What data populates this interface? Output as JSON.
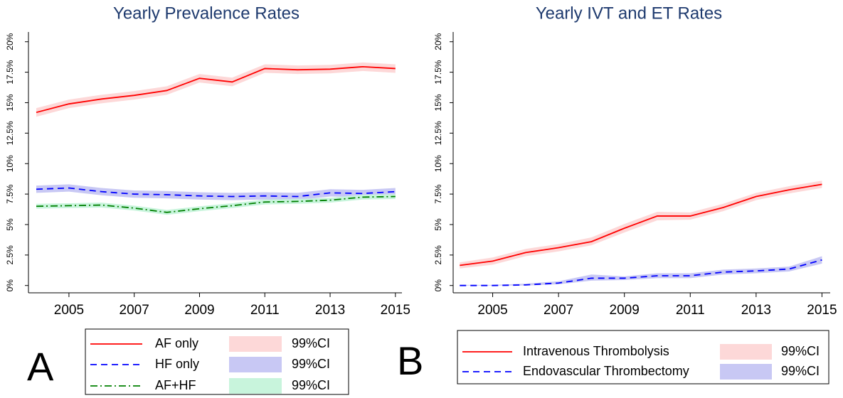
{
  "chart_data": [
    {
      "type": "line",
      "panel_label": "A",
      "title": "Yearly Prevalence Rates",
      "x": [
        2004,
        2005,
        2006,
        2007,
        2008,
        2009,
        2010,
        2011,
        2012,
        2013,
        2014,
        2015
      ],
      "xlim": [
        2003.76,
        2015.2
      ],
      "xticks": [
        2005,
        2007,
        2009,
        2011,
        2013,
        2015
      ],
      "ylim": [
        -0.6,
        20.8
      ],
      "yticks": [
        {
          "value": 0,
          "label": "0%"
        },
        {
          "value": 2.5,
          "label": "2.5%"
        },
        {
          "value": 5,
          "label": "5%"
        },
        {
          "value": 7.5,
          "label": "7.5%"
        },
        {
          "value": 10,
          "label": "10%"
        },
        {
          "value": 12.5,
          "label": "12.5%"
        },
        {
          "value": 15,
          "label": "15%"
        },
        {
          "value": 17.5,
          "label": "17.5%"
        },
        {
          "value": 20,
          "label": "20%"
        }
      ],
      "grid": false,
      "legend": "bottom",
      "series": [
        {
          "name": "AF only",
          "color": "#ff0000",
          "style": "solid",
          "values": [
            14.2,
            14.9,
            15.3,
            15.6,
            16.0,
            17.0,
            16.7,
            17.8,
            17.7,
            17.75,
            17.95,
            17.8
          ],
          "ci": {
            "name": "99%CI",
            "color": "#fdd8d8",
            "lower": [
              13.85,
              14.55,
              14.95,
              15.25,
              15.65,
              16.65,
              16.35,
              17.45,
              17.35,
              17.4,
              17.6,
              17.45
            ],
            "upper": [
              14.55,
              15.25,
              15.65,
              15.95,
              16.35,
              17.35,
              17.05,
              18.15,
              18.05,
              18.1,
              18.3,
              18.15
            ]
          }
        },
        {
          "name": "HF only",
          "color": "#0000ff",
          "style": "dash",
          "values": [
            7.9,
            8.0,
            7.7,
            7.5,
            7.45,
            7.35,
            7.3,
            7.35,
            7.3,
            7.6,
            7.55,
            7.7
          ],
          "ci": {
            "name": "99%CI",
            "color": "#c8c8f4",
            "lower": [
              7.6,
              7.7,
              7.4,
              7.2,
              7.15,
              7.05,
              7.0,
              7.05,
              7.0,
              7.3,
              7.25,
              7.4
            ],
            "upper": [
              8.2,
              8.3,
              8.0,
              7.8,
              7.75,
              7.65,
              7.6,
              7.65,
              7.6,
              7.9,
              7.85,
              8.0
            ]
          }
        },
        {
          "name": "AF+HF",
          "color": "#008000",
          "style": "dashdot",
          "values": [
            6.5,
            6.55,
            6.6,
            6.35,
            6.0,
            6.3,
            6.55,
            6.85,
            6.9,
            7.0,
            7.25,
            7.3
          ],
          "ci": {
            "name": "99%CI",
            "color": "#c8f4dc",
            "lower": [
              6.3,
              6.35,
              6.4,
              6.15,
              5.8,
              6.1,
              6.35,
              6.65,
              6.7,
              6.8,
              7.05,
              7.1
            ],
            "upper": [
              6.7,
              6.75,
              6.8,
              6.55,
              6.2,
              6.5,
              6.75,
              7.05,
              7.1,
              7.2,
              7.45,
              7.5
            ]
          }
        }
      ]
    },
    {
      "type": "line",
      "panel_label": "B",
      "title": "Yearly IVT and ET Rates",
      "x": [
        2004,
        2005,
        2006,
        2007,
        2008,
        2009,
        2010,
        2011,
        2012,
        2013,
        2014,
        2015
      ],
      "xlim": [
        2003.8,
        2015.25
      ],
      "xticks": [
        2005,
        2007,
        2009,
        2011,
        2013,
        2015
      ],
      "ylim": [
        -0.6,
        20.8
      ],
      "yticks": [
        {
          "value": 0,
          "label": "0%"
        },
        {
          "value": 2.5,
          "label": "2.5%"
        },
        {
          "value": 5,
          "label": "5%"
        },
        {
          "value": 7.5,
          "label": "7.5%"
        },
        {
          "value": 10,
          "label": "10%"
        },
        {
          "value": 12.5,
          "label": "12.5%"
        },
        {
          "value": 15,
          "label": "15%"
        },
        {
          "value": 17.5,
          "label": "17.5%"
        },
        {
          "value": 20,
          "label": "20%"
        }
      ],
      "grid": false,
      "legend": "bottom",
      "series": [
        {
          "name": "Intravenous Thrombolysis",
          "color": "#ff0000",
          "style": "solid",
          "values": [
            1.65,
            2.0,
            2.7,
            3.1,
            3.6,
            4.7,
            5.7,
            5.7,
            6.4,
            7.3,
            7.85,
            8.3
          ],
          "ci": {
            "name": "99%CI",
            "color": "#fdd8d8",
            "lower": [
              1.4,
              1.7,
              2.4,
              2.8,
              3.3,
              4.35,
              5.35,
              5.4,
              6.1,
              7.0,
              7.55,
              8.0
            ],
            "upper": [
              1.9,
              2.3,
              3.0,
              3.4,
              3.95,
              5.05,
              6.05,
              6.0,
              6.7,
              7.6,
              8.15,
              8.6
            ]
          }
        },
        {
          "name": "Endovascular Thrombectomy",
          "color": "#0000ff",
          "style": "dash",
          "values": [
            0,
            0,
            0.05,
            0.2,
            0.6,
            0.6,
            0.8,
            0.8,
            1.1,
            1.2,
            1.35,
            2.1
          ],
          "ci": {
            "name": "99%CI",
            "color": "#c8c8f4",
            "lower": [
              0,
              0,
              0,
              0.1,
              0.4,
              0.45,
              0.6,
              0.6,
              0.9,
              1.0,
              1.15,
              1.8
            ],
            "upper": [
              0.05,
              0.05,
              0.15,
              0.35,
              0.9,
              0.75,
              1.0,
              1.0,
              1.3,
              1.4,
              1.55,
              2.4
            ]
          }
        }
      ]
    }
  ]
}
